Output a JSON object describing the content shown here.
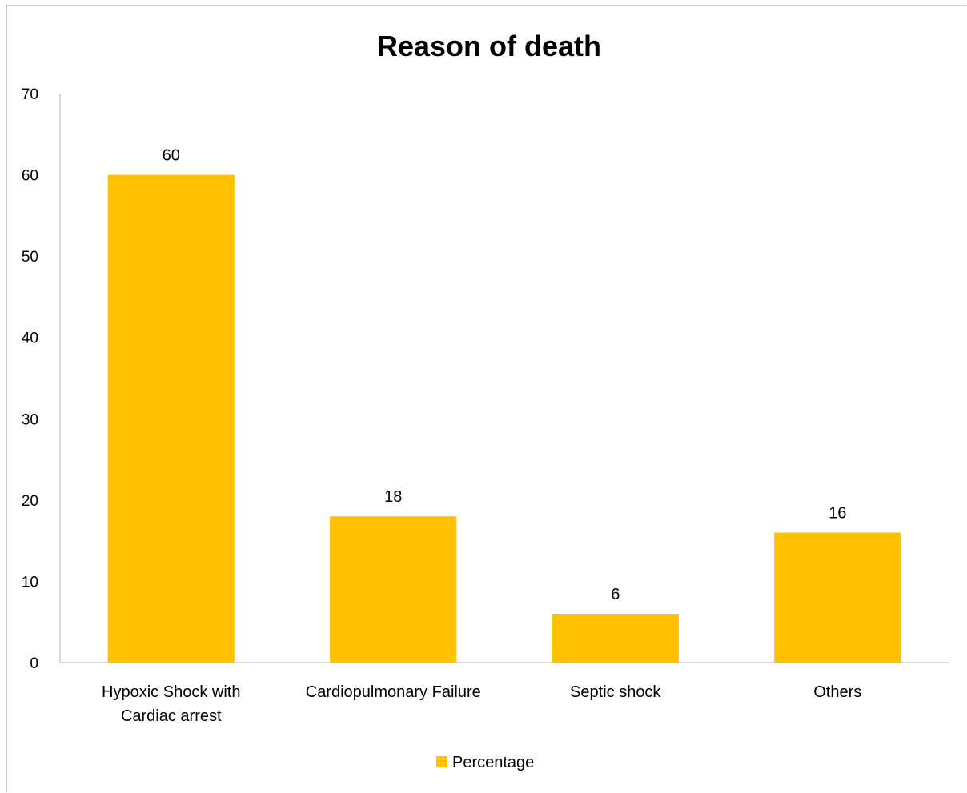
{
  "chart_data": {
    "type": "bar",
    "title": "Reason of death",
    "categories": [
      [
        "Hypoxic Shock with",
        "Cardiac arrest"
      ],
      [
        "Cardiopulmonary Failure"
      ],
      [
        "Septic shock"
      ],
      [
        "Others"
      ]
    ],
    "series": [
      {
        "name": "Percentage",
        "values": [
          60,
          18,
          6,
          16
        ],
        "color": "#ffc000"
      }
    ],
    "ylim": [
      0,
      70
    ],
    "yticks": [
      0,
      10,
      20,
      30,
      40,
      50,
      60,
      70
    ],
    "grid": false,
    "legend_position": "bottom",
    "data_labels": [
      "60",
      "18",
      "6",
      "16"
    ]
  }
}
